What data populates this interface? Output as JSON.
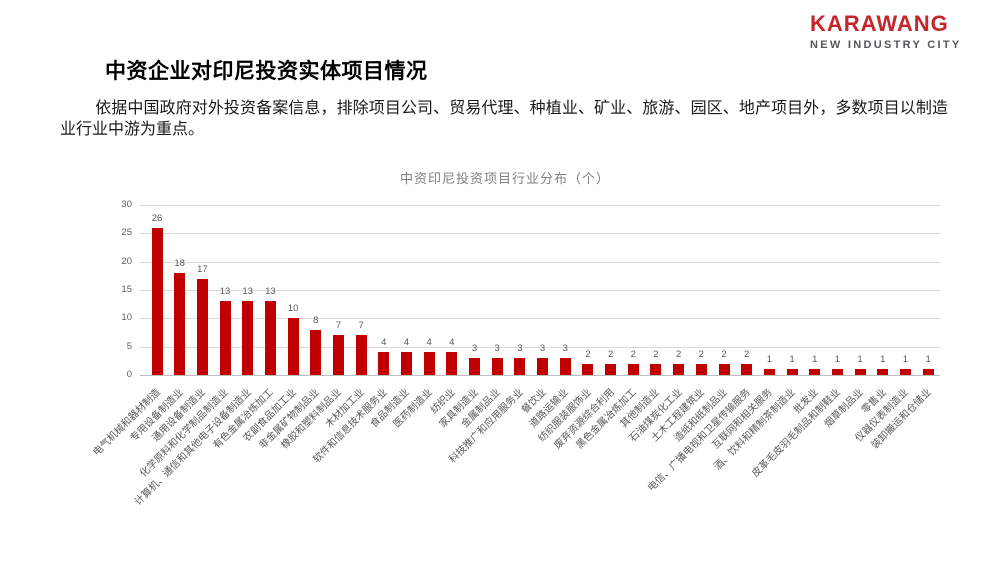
{
  "brand": {
    "name": "KARAWANG",
    "tagline": "NEW INDUSTRY CITY",
    "brand_color": "#C5262C"
  },
  "header": {
    "title": "中资企业对印尼投资实体项目情况"
  },
  "body": {
    "paragraph": "依据中国政府对外投资备案信息，排除项目公司、贸易代理、种植业、矿业、旅游、园区、地产项目外，多数项目以制造业行业中游为重点。"
  },
  "chart_data": {
    "type": "bar",
    "title": "中资印尼投资项目行业分布（个）",
    "categories": [
      "电气机械和器材制造",
      "专用设备制造业",
      "通用设备制造业",
      "化学原料和化学制品制造业",
      "计算机、通信和其他电子设备制造业",
      "有色金属冶炼加工",
      "农副食品加工业",
      "非金属矿物制品业",
      "橡胶和塑料制品业",
      "木材加工业",
      "软件和信息技术服务业",
      "食品制造业",
      "医药制造业",
      "纺织业",
      "家具制造业",
      "金属制品业",
      "科技推广和应用服务业",
      "餐饮业",
      "道路运输业",
      "纺织服装服饰业",
      "废弃资源综合利用",
      "黑色金属冶炼加工",
      "其他制造业",
      "石油煤炭化工业",
      "土木工程建筑业",
      "造纸和纸制品业",
      "电信、广播电视和卫星传输服务",
      "互联网和相关服务",
      "酒、饮料和精制茶制造业",
      "批发业",
      "皮革毛皮羽毛制品和制鞋业",
      "烟草制品业",
      "零售业",
      "仪器仪表制造业",
      "装卸搬运和仓储业"
    ],
    "values": [
      26,
      18,
      17,
      13,
      13,
      13,
      10,
      8,
      7,
      7,
      4,
      4,
      4,
      4,
      3,
      3,
      3,
      3,
      3,
      2,
      2,
      2,
      2,
      2,
      2,
      2,
      2,
      1,
      1,
      1,
      1,
      1,
      1,
      1,
      1
    ],
    "xlabel": "",
    "ylabel": "",
    "ylim": [
      0,
      30
    ],
    "yticks": [
      0,
      5,
      10,
      15,
      20,
      25,
      30
    ],
    "bar_color": "#C00000",
    "grid": true,
    "value_labels": true,
    "legend": "none"
  }
}
